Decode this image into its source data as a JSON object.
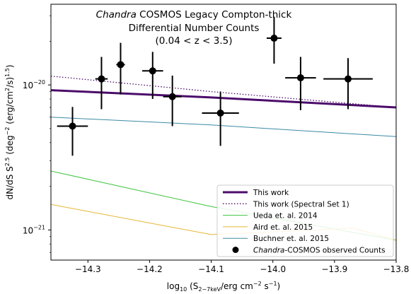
{
  "chart_data": {
    "type": "scatter",
    "title_lines": [
      {
        "italic": "Chandra",
        "rest": " COSMOS Legacy Compton-thick"
      },
      {
        "italic": "",
        "rest": "Differential Number Counts"
      },
      {
        "italic": "",
        "rest": "(0.04 < z < 3.5)"
      }
    ],
    "xlabel": "log10 (S2-7keV/erg cm-2 s-1)",
    "ylabel": "dN/dS S2.5 (deg-2 (erg/cm2/s)1.5)",
    "x_scale": "linear",
    "y_scale": "log",
    "xlim": [
      -14.36,
      -13.8
    ],
    "ylim": [
      6.2e-22,
      3.6e-20
    ],
    "x_ticks": [
      -14.3,
      -14.2,
      -14.1,
      -14.0,
      -13.9,
      -13.8
    ],
    "x_tick_labels": [
      "−14.3",
      "−14.2",
      "−14.1",
      "−14.0",
      "−13.9",
      "−13.8"
    ],
    "y_major_ticks": [
      1e-21,
      1e-20
    ],
    "y_tick_labels": [
      {
        "base": "10",
        "exp": "−21"
      },
      {
        "base": "10",
        "exp": "−20"
      }
    ],
    "legend_position": "lower-right",
    "legend": [
      {
        "label": "This work",
        "style": "thick-line",
        "color": "#4b0b6b"
      },
      {
        "label": "This work (Spectral Set 1)",
        "style": "dotted",
        "color": "#4b0b6b"
      },
      {
        "label": "Ueda et. al. 2014",
        "style": "line",
        "color": "#3ec43e"
      },
      {
        "label": "Aird et. al. 2015",
        "style": "line",
        "color": "#e8b634"
      },
      {
        "label": "Buchner et. al. 2015",
        "style": "line",
        "color": "#3a8aa6"
      },
      {
        "label_italic": "Chandra",
        "label": "-COSMOS observed Counts",
        "style": "marker",
        "color": "#000000"
      }
    ],
    "series": [
      {
        "name": "This work",
        "style": "thick-line",
        "color": "#4b0b6b",
        "x": [
          -14.36,
          -14.1,
          -13.8
        ],
        "y": [
          9.2e-21,
          8.2e-21,
          7e-21
        ]
      },
      {
        "name": "This work (Spectral Set 1)",
        "style": "dotted",
        "color": "#4b0b6b",
        "x": [
          -14.36,
          -14.1,
          -13.8
        ],
        "y": [
          1.15e-20,
          9e-21,
          7e-21
        ]
      },
      {
        "name": "Ueda et. al. 2014",
        "style": "line",
        "color": "#3ec43e",
        "x": [
          -14.36,
          -14.1,
          -13.8
        ],
        "y": [
          2.55e-21,
          1.45e-21,
          8.5e-22
        ]
      },
      {
        "name": "Aird et. al. 2015",
        "style": "line",
        "color": "#e8b634",
        "x": [
          -14.36,
          -14.1,
          -13.95,
          -13.87,
          -13.8
        ],
        "y": [
          1.5e-21,
          9.3e-22,
          9.9e-22,
          1.03e-21,
          8.5e-22
        ]
      },
      {
        "name": "Buchner et. al. 2015",
        "style": "line",
        "color": "#3a8aa6",
        "x": [
          -14.36,
          -14.1,
          -13.8
        ],
        "y": [
          6e-21,
          5.3e-21,
          4.4e-21
        ]
      }
    ],
    "points": [
      {
        "x": -14.325,
        "y": 5.2e-21,
        "xerr": [
          0.025,
          0.025
        ],
        "yerr": [
          1.95e-21,
          1.85e-21
        ]
      },
      {
        "x": -14.278,
        "y": 1.1e-20,
        "xerr": [
          0.01,
          0.01
        ],
        "yerr": [
          4.2e-21,
          4.6e-21
        ]
      },
      {
        "x": -14.247,
        "y": 1.38e-20,
        "xerr": [
          0.007,
          0.007
        ],
        "yerr": [
          5.2e-21,
          5.7e-21
        ]
      },
      {
        "x": -14.195,
        "y": 1.25e-20,
        "xerr": [
          0.017,
          0.017
        ],
        "yerr": [
          4.5e-21,
          4.4e-21
        ]
      },
      {
        "x": -14.163,
        "y": 8.3e-21,
        "xerr": [
          0.015,
          0.015
        ],
        "yerr": [
          3.1e-21,
          3.3e-21
        ]
      },
      {
        "x": -14.085,
        "y": 6.4e-21,
        "xerr": [
          0.03,
          0.03
        ],
        "yerr": [
          2.6e-21,
          2.6e-21
        ]
      },
      {
        "x": -13.998,
        "y": 2.1e-20,
        "xerr": [
          0.012,
          0.012
        ],
        "yerr": [
          7e-21,
          8.5e-21
        ]
      },
      {
        "x": -13.955,
        "y": 1.12e-20,
        "xerr": [
          0.025,
          0.025
        ],
        "yerr": [
          4.5e-21,
          4.4e-21
        ]
      },
      {
        "x": -13.878,
        "y": 1.1e-20,
        "xerr": [
          0.04,
          0.04
        ],
        "yerr": [
          4.2e-21,
          4.3e-21
        ]
      }
    ]
  }
}
